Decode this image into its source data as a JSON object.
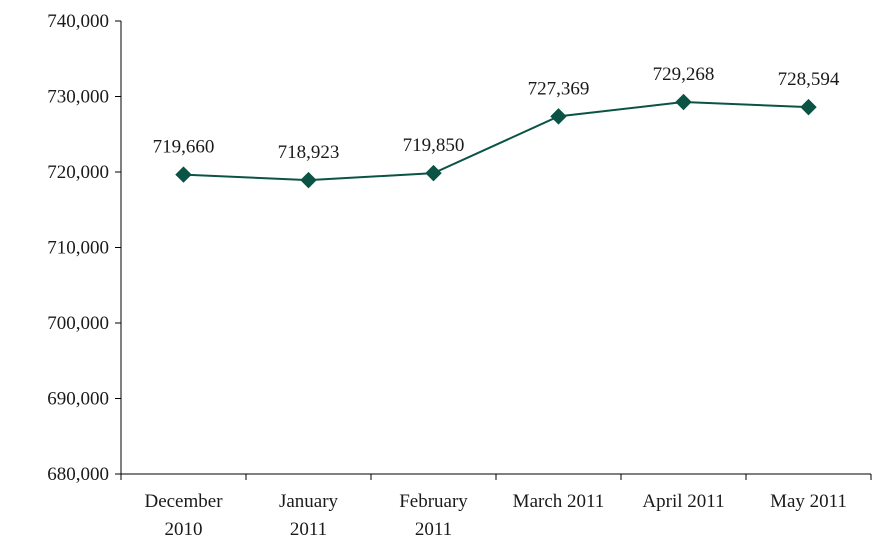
{
  "chart_data": {
    "type": "line",
    "title": "",
    "xlabel": "",
    "ylabel": "",
    "categories": [
      [
        "December",
        "2010"
      ],
      [
        "January",
        "2011"
      ],
      [
        "February",
        "2011"
      ],
      [
        "March 2011"
      ],
      [
        "April 2011"
      ],
      [
        "May 2011"
      ]
    ],
    "series": [
      {
        "values": [
          719660,
          718923,
          719850,
          727369,
          729268,
          728594
        ]
      }
    ],
    "data_labels": [
      "719,660",
      "718,923",
      "719,850",
      "727,369",
      "729,268",
      "728,594"
    ],
    "ylim": [
      680000,
      740000
    ],
    "yticks": [
      680000,
      690000,
      700000,
      710000,
      720000,
      730000,
      740000
    ],
    "ytick_labels": [
      "680,000",
      "690,000",
      "700,000",
      "710,000",
      "720,000",
      "730,000",
      "740,000"
    ],
    "grid": false,
    "legend": "none",
    "marker": "diamond",
    "colors": {
      "series": "#0b5345",
      "axis": "#000000",
      "text": "#1a1a1a"
    }
  }
}
